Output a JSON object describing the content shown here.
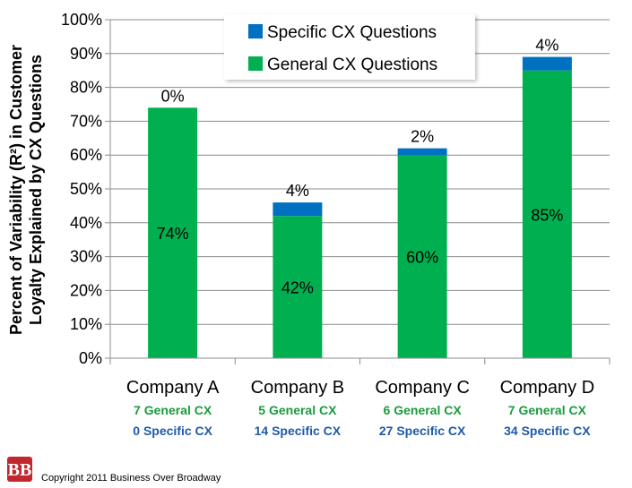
{
  "chart_data": {
    "type": "bar",
    "stacked": true,
    "ylabel_lines": [
      "Percent of Variability (R²) in Customer",
      "Loyalty Explained by CX Questions"
    ],
    "ylim": [
      0,
      100
    ],
    "yticks": [
      "0%",
      "10%",
      "20%",
      "30%",
      "40%",
      "50%",
      "60%",
      "70%",
      "80%",
      "90%",
      "100%"
    ],
    "grid": true,
    "legend_position": "top",
    "categories": [
      "Company A",
      "Company B",
      "Company C",
      "Company D"
    ],
    "category_sublabels": [
      {
        "general": "7 General CX",
        "specific": "0 Specific CX"
      },
      {
        "general": "5 General CX",
        "specific": "14 Specific CX"
      },
      {
        "general": "6 General CX",
        "specific": "27 Specific CX"
      },
      {
        "general": "7 General CX",
        "specific": "34 Specific CX"
      }
    ],
    "series": [
      {
        "name": "General CX Questions",
        "values": [
          74,
          42,
          60,
          85
        ],
        "labels": [
          "74%",
          "42%",
          "60%",
          "85%"
        ],
        "color": "#00b050"
      },
      {
        "name": "Specific CX Questions",
        "values": [
          0,
          4,
          2,
          4
        ],
        "labels": [
          "0%",
          "4%",
          "2%",
          "4%"
        ],
        "color": "#0070c0"
      }
    ],
    "legend": [
      "Specific CX Questions",
      "General CX Questions"
    ]
  },
  "footer": {
    "logo_text": "BB",
    "copyright": "Copyright 2011 Business Over Broadway"
  },
  "colors": {
    "general": "#00b050",
    "specific": "#0070c0",
    "general_text": "#1a9b3c",
    "specific_text": "#1f5aa8",
    "logo_bg": "#c0282d"
  }
}
